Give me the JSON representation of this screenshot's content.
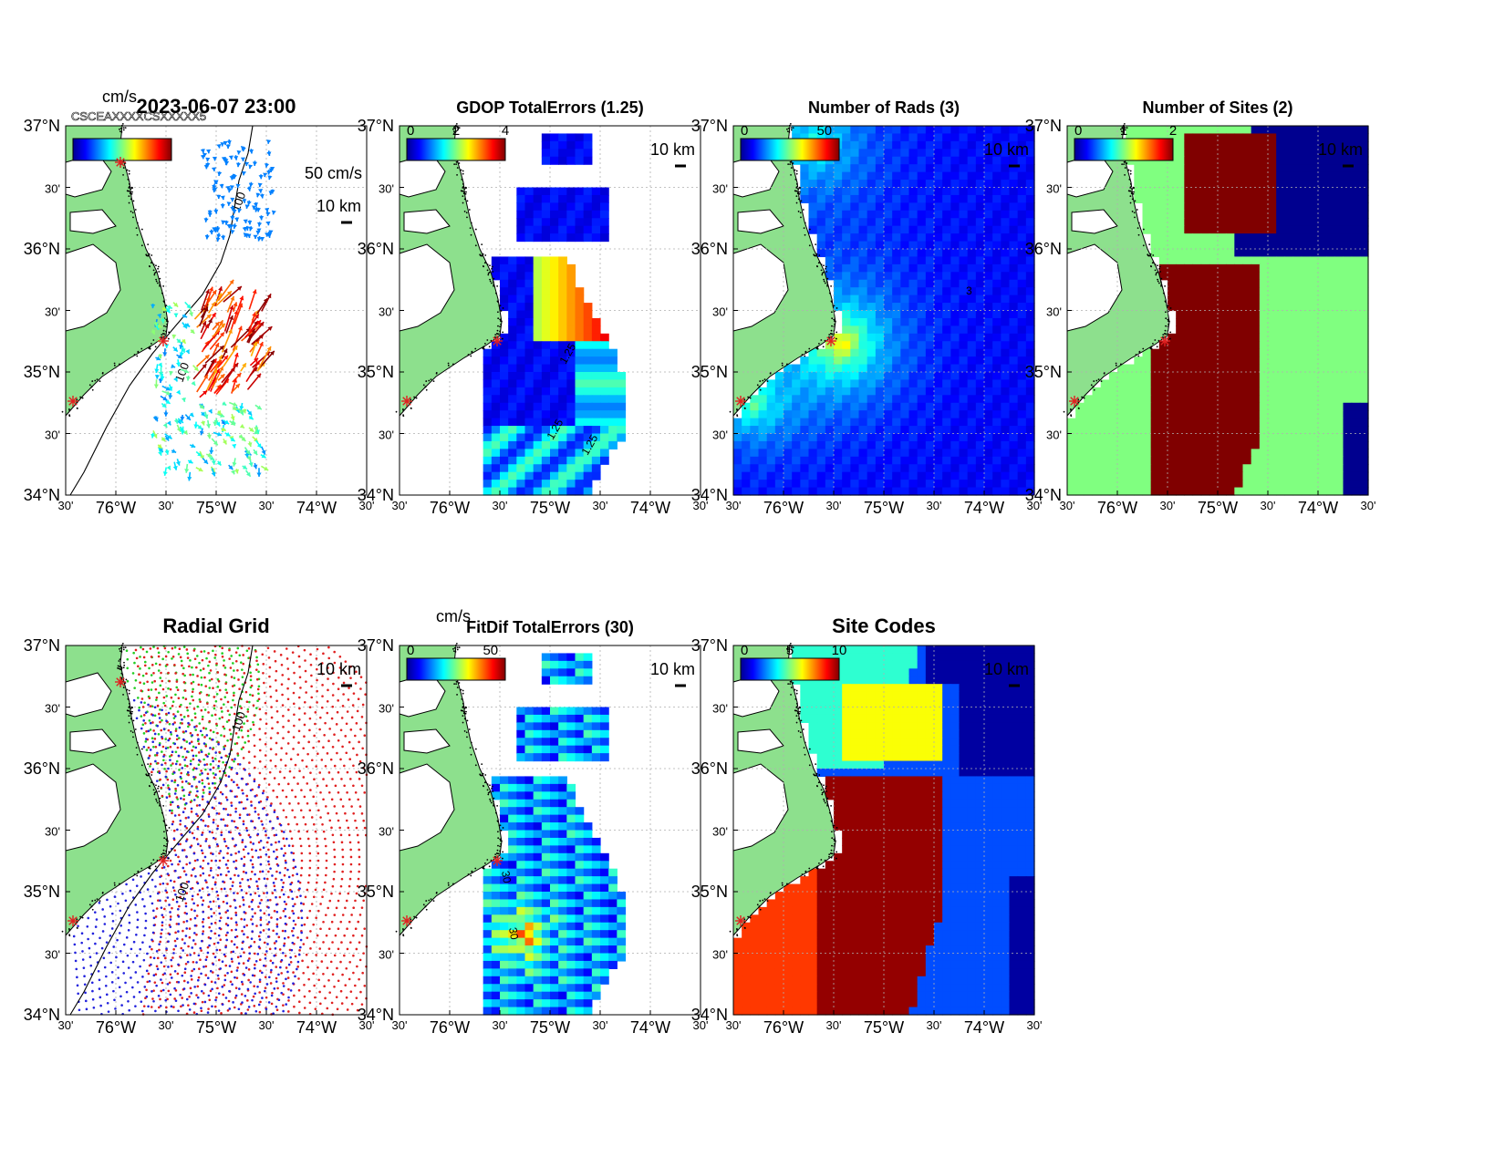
{
  "timestamp": "2023-06-07 23:00",
  "colors": {
    "land": "#8de08d",
    "water_blank": "#ffffff",
    "site_marker": "#e02020",
    "grid_green": "#22cc22",
    "grid_red": "#e02020",
    "grid_blue": "#2222dd",
    "axis": "#000000",
    "grid_line": "#b0b0b0"
  },
  "axes": {
    "lat_labels": [
      "37°N",
      "30'",
      "36°N",
      "30'",
      "35°N",
      "30'",
      "34°N"
    ],
    "lon_labels": [
      "30'",
      "76°W",
      "30'",
      "75°W",
      "30'",
      "74°W",
      "30'"
    ],
    "isobath_label": "100",
    "scale_bar_label": "10 km"
  },
  "panels": [
    {
      "id": "velocity",
      "title": "2023-06-07 23:00",
      "colorbar_unit": "cm/s",
      "colorbar_ticks": [],
      "vector_scale_label": "50 cm/s",
      "overlap_text": "CSCEAXXXXCSXXXXX5"
    },
    {
      "id": "gdop",
      "title": "GDOP TotalErrors (1.25)",
      "colorbar_ticks": [
        "0",
        "2",
        "4"
      ],
      "contour_labels": [
        "1.25",
        "1.25",
        "1.25"
      ]
    },
    {
      "id": "nrads",
      "title": "Number of Rads (3)",
      "colorbar_ticks": [
        "0",
        "50"
      ],
      "contour_labels": [
        "3"
      ]
    },
    {
      "id": "nsites",
      "title": "Number of Sites (2)",
      "colorbar_ticks": [
        "0",
        "1",
        "2"
      ]
    },
    {
      "id": "radialgrid",
      "title": "Radial Grid"
    },
    {
      "id": "fitdif",
      "title": "FitDif TotalErrors (30)",
      "colorbar_unit": "cm/s",
      "colorbar_ticks": [
        "0",
        "50"
      ],
      "contour_labels": [
        "30",
        "30"
      ]
    },
    {
      "id": "sitecodes",
      "title": "Site Codes",
      "colorbar_ticks": [
        "0",
        "5",
        "10"
      ]
    }
  ]
}
